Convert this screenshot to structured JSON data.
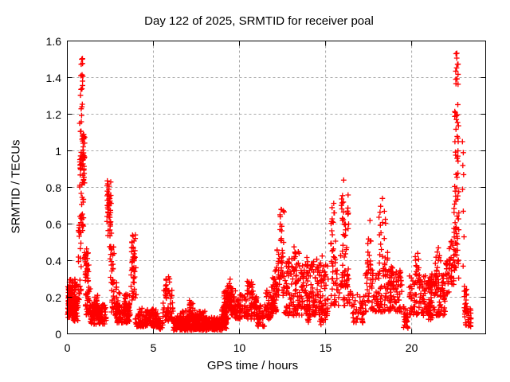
{
  "chart_data": {
    "type": "scatter",
    "title": "Day 122 of 2025, SRMTID for receiver poal",
    "xlabel": "GPS time / hours",
    "ylabel": "SRMTID / TECUs",
    "xlim": [
      0,
      24.3
    ],
    "ylim": [
      0,
      1.6
    ],
    "xticks": [
      {
        "value": 0,
        "label": "0"
      },
      {
        "value": 5,
        "label": "5"
      },
      {
        "value": 10,
        "label": "10"
      },
      {
        "value": 15,
        "label": "15"
      },
      {
        "value": 20,
        "label": "20"
      }
    ],
    "yticks": [
      {
        "value": 0,
        "label": "0"
      },
      {
        "value": 0.2,
        "label": "0.2"
      },
      {
        "value": 0.4,
        "label": "0.4"
      },
      {
        "value": 0.6,
        "label": "0.6"
      },
      {
        "value": 0.8,
        "label": "0.8"
      },
      {
        "value": 1.0,
        "label": "1"
      },
      {
        "value": 1.2,
        "label": "1.2"
      },
      {
        "value": 1.4,
        "label": "1.4"
      },
      {
        "value": 1.6,
        "label": "1.6"
      }
    ],
    "grid": true,
    "grid_style": "dashed",
    "grid_color": "#a8a8a8",
    "axis_color": "#000000",
    "background": "#ffffff",
    "marker": "plus",
    "marker_color": "#ff0000",
    "legend": "none",
    "bands_format": [
      "x_start_hours",
      "x_end_hours",
      "y_min_TECUs",
      "y_max_TECUs",
      "point_count",
      "low_bias_exponent"
    ],
    "bands": [
      [
        0.02,
        0.32,
        0.09,
        0.26,
        85,
        1.3
      ],
      [
        0.05,
        0.55,
        0.1,
        0.3,
        60,
        1.5
      ],
      [
        0.32,
        0.62,
        0.07,
        0.2,
        40,
        1.2
      ],
      [
        0.62,
        0.8,
        0.12,
        0.6,
        22,
        1.2
      ],
      [
        0.7,
        0.95,
        0.55,
        1.2,
        58,
        1.0
      ],
      [
        0.76,
        0.92,
        1.2,
        1.42,
        12,
        1.0
      ],
      [
        0.8,
        0.9,
        1.43,
        1.51,
        5,
        1.0
      ],
      [
        0.88,
        1.02,
        0.8,
        1.13,
        24,
        1.0
      ],
      [
        1.0,
        1.25,
        0.28,
        0.47,
        32,
        1.1
      ],
      [
        1.05,
        1.35,
        0.1,
        0.28,
        28,
        1.3
      ],
      [
        1.3,
        2.25,
        0.05,
        0.16,
        105,
        1.3
      ],
      [
        1.55,
        1.85,
        0.1,
        0.21,
        22,
        1.2
      ],
      [
        2.3,
        2.55,
        0.58,
        0.86,
        40,
        1.0
      ],
      [
        2.35,
        2.55,
        0.4,
        0.58,
        9,
        1.0
      ],
      [
        2.5,
        2.75,
        0.28,
        0.5,
        18,
        1.1
      ],
      [
        2.55,
        3.0,
        0.1,
        0.28,
        26,
        1.4
      ],
      [
        2.8,
        3.65,
        0.06,
        0.17,
        95,
        1.3
      ],
      [
        3.3,
        3.65,
        0.1,
        0.22,
        28,
        1.2
      ],
      [
        3.72,
        3.97,
        0.4,
        0.56,
        20,
        1.0
      ],
      [
        3.7,
        4.0,
        0.18,
        0.4,
        28,
        1.2
      ],
      [
        3.95,
        5.35,
        0.04,
        0.14,
        145,
        1.3
      ],
      [
        5.15,
        5.55,
        0.02,
        0.07,
        22,
        1.2
      ],
      [
        5.55,
        6.15,
        0.07,
        0.25,
        50,
        1.5
      ],
      [
        5.7,
        5.95,
        0.22,
        0.33,
        12,
        1.1
      ],
      [
        6.1,
        9.25,
        0.02,
        0.09,
        400,
        1.2
      ],
      [
        6.3,
        8.0,
        0.08,
        0.13,
        55,
        1.4
      ],
      [
        7.05,
        7.35,
        0.12,
        0.19,
        11,
        1.2
      ],
      [
        8.95,
        9.2,
        0.05,
        0.16,
        35,
        1.3
      ],
      [
        9.1,
        9.35,
        0.08,
        0.24,
        40,
        1.3
      ],
      [
        9.28,
        9.55,
        0.13,
        0.3,
        40,
        1.2
      ],
      [
        9.5,
        9.8,
        0.1,
        0.25,
        35,
        1.3
      ],
      [
        9.72,
        10.05,
        0.08,
        0.19,
        30,
        1.3
      ],
      [
        10.0,
        11.05,
        0.08,
        0.24,
        85,
        1.3
      ],
      [
        10.45,
        10.78,
        0.18,
        0.3,
        18,
        1.1
      ],
      [
        11.0,
        11.55,
        0.04,
        0.16,
        42,
        1.3
      ],
      [
        11.5,
        11.95,
        0.08,
        0.24,
        45,
        1.4
      ],
      [
        11.85,
        12.18,
        0.12,
        0.33,
        40,
        1.3
      ],
      [
        12.05,
        12.32,
        0.2,
        0.46,
        24,
        1.2
      ],
      [
        12.35,
        12.6,
        0.42,
        0.68,
        17,
        1.1
      ],
      [
        12.3,
        12.62,
        0.2,
        0.42,
        20,
        1.2
      ],
      [
        12.6,
        15.15,
        0.1,
        0.38,
        230,
        1.5
      ],
      [
        12.6,
        15.1,
        0.3,
        0.44,
        38,
        1.3
      ],
      [
        13.15,
        13.42,
        0.38,
        0.48,
        10,
        1.0
      ],
      [
        13.75,
        14.1,
        0.06,
        0.15,
        18,
        1.2
      ],
      [
        14.6,
        15.0,
        0.05,
        0.15,
        18,
        1.2
      ],
      [
        15.3,
        15.6,
        0.3,
        0.72,
        28,
        1.2
      ],
      [
        15.85,
        16.35,
        0.25,
        0.8,
        52,
        1.3
      ],
      [
        15.3,
        16.45,
        0.15,
        0.35,
        48,
        1.2
      ],
      [
        16.5,
        17.25,
        0.06,
        0.22,
        42,
        1.3
      ],
      [
        17.3,
        19.45,
        0.12,
        0.35,
        165,
        1.4
      ],
      [
        17.4,
        17.65,
        0.35,
        0.63,
        16,
        1.2
      ],
      [
        18.1,
        18.5,
        0.35,
        0.72,
        22,
        1.3
      ],
      [
        18.55,
        18.9,
        0.25,
        0.45,
        18,
        1.2
      ],
      [
        19.5,
        19.85,
        0.03,
        0.15,
        26,
        1.2
      ],
      [
        19.85,
        21.95,
        0.1,
        0.33,
        185,
        1.4
      ],
      [
        20.2,
        20.5,
        0.28,
        0.43,
        14,
        1.1
      ],
      [
        21.35,
        21.7,
        0.28,
        0.46,
        14,
        1.1
      ],
      [
        20.85,
        21.2,
        0.07,
        0.18,
        18,
        1.2
      ],
      [
        21.95,
        22.2,
        0.22,
        0.4,
        20,
        1.3
      ],
      [
        22.18,
        22.45,
        0.27,
        0.52,
        24,
        1.3
      ],
      [
        22.45,
        22.75,
        0.3,
        0.8,
        45,
        1.2
      ],
      [
        22.5,
        22.72,
        0.8,
        1.25,
        24,
        1.0
      ],
      [
        22.55,
        22.7,
        1.25,
        1.56,
        13,
        1.0
      ],
      [
        23.05,
        23.25,
        0.12,
        0.26,
        16,
        1.2
      ],
      [
        23.08,
        23.45,
        0.04,
        0.14,
        28,
        1.2
      ]
    ],
    "points": [
      [
        22.95,
        1.05
      ],
      [
        23.0,
        0.99
      ],
      [
        22.97,
        0.92
      ],
      [
        23.02,
        0.87
      ],
      [
        22.96,
        0.79
      ],
      [
        23.0,
        0.67
      ],
      [
        23.04,
        0.53
      ],
      [
        22.99,
        0.37
      ],
      [
        2.56,
        0.55
      ],
      [
        3.05,
        0.22
      ],
      [
        7.2,
        0.16
      ],
      [
        5.35,
        0.03
      ],
      [
        0.3,
        0.29
      ],
      [
        16.05,
        0.84
      ],
      [
        12.42,
        0.68
      ],
      [
        18.3,
        0.74
      ],
      [
        21.55,
        0.47
      ],
      [
        20.35,
        0.44
      ]
    ]
  }
}
